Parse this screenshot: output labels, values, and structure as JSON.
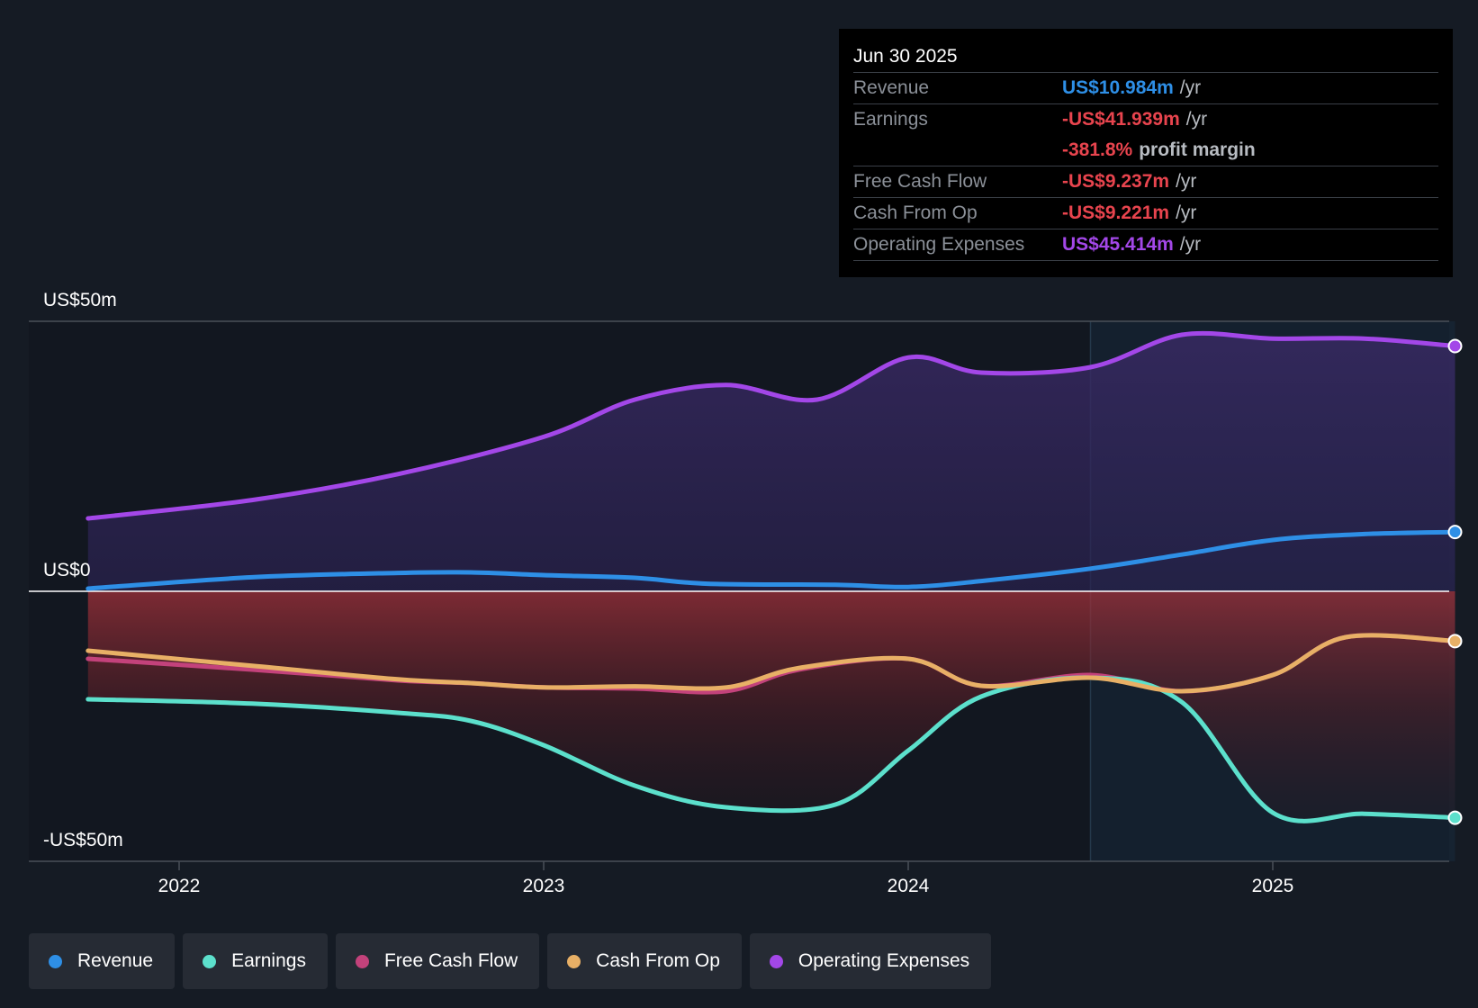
{
  "chart_data": {
    "type": "area",
    "y_axis": {
      "labels": [
        "US$50m",
        "US$0",
        "-US$50m"
      ],
      "ylim": [
        -50,
        50
      ],
      "unit": "US$m"
    },
    "x_axis": {
      "ticks": [
        "2022",
        "2023",
        "2024",
        "2025"
      ],
      "xlim": [
        2021.75,
        2025.5
      ]
    },
    "forecast_start": 2024.5,
    "series": [
      {
        "name": "Revenue",
        "color": "#2e8fe6",
        "points": [
          [
            2021.75,
            0.5
          ],
          [
            2022.2,
            2.6
          ],
          [
            2022.6,
            3.4
          ],
          [
            2022.8,
            3.5
          ],
          [
            2023.0,
            3.0
          ],
          [
            2023.25,
            2.5
          ],
          [
            2023.45,
            1.4
          ],
          [
            2023.8,
            1.2
          ],
          [
            2024.0,
            0.8
          ],
          [
            2024.2,
            1.9
          ],
          [
            2024.5,
            4.2
          ],
          [
            2024.75,
            6.8
          ],
          [
            2025.0,
            9.5
          ],
          [
            2025.25,
            10.6
          ],
          [
            2025.5,
            10.984
          ]
        ]
      },
      {
        "name": "Earnings",
        "color": "#5ce0cc",
        "points": [
          [
            2021.75,
            -20
          ],
          [
            2022.2,
            -20.8
          ],
          [
            2022.6,
            -22.5
          ],
          [
            2022.8,
            -24
          ],
          [
            2023.0,
            -28.5
          ],
          [
            2023.25,
            -36
          ],
          [
            2023.5,
            -40
          ],
          [
            2023.8,
            -39.5
          ],
          [
            2024.0,
            -29.5
          ],
          [
            2024.2,
            -19.5
          ],
          [
            2024.5,
            -16
          ],
          [
            2024.75,
            -20.5
          ],
          [
            2025.0,
            -41
          ],
          [
            2025.25,
            -41.2
          ],
          [
            2025.5,
            -41.939
          ]
        ]
      },
      {
        "name": "Free Cash Flow",
        "color": "#c3427b",
        "points": [
          [
            2021.75,
            -12.5
          ],
          [
            2022.2,
            -14.5
          ],
          [
            2022.6,
            -16.5
          ],
          [
            2022.8,
            -17
          ],
          [
            2023.0,
            -17.8
          ],
          [
            2023.25,
            -18
          ],
          [
            2023.5,
            -18.5
          ],
          [
            2023.7,
            -14.5
          ],
          [
            2024.0,
            -12.5
          ],
          [
            2024.2,
            -17.5
          ],
          [
            2024.5,
            -15.5
          ],
          [
            2024.75,
            -18.5
          ],
          [
            2025.0,
            -15.5
          ],
          [
            2025.2,
            -8.5
          ],
          [
            2025.5,
            -9.237
          ]
        ]
      },
      {
        "name": "Cash From Op",
        "color": "#e8b066",
        "points": [
          [
            2021.75,
            -11
          ],
          [
            2022.2,
            -13.8
          ],
          [
            2022.6,
            -16.3
          ],
          [
            2022.8,
            -17
          ],
          [
            2023.0,
            -17.8
          ],
          [
            2023.25,
            -17.6
          ],
          [
            2023.5,
            -17.8
          ],
          [
            2023.7,
            -14.2
          ],
          [
            2024.0,
            -12.5
          ],
          [
            2024.2,
            -17.5
          ],
          [
            2024.5,
            -16
          ],
          [
            2024.75,
            -18.5
          ],
          [
            2025.0,
            -15.5
          ],
          [
            2025.2,
            -8.5
          ],
          [
            2025.5,
            -9.221
          ]
        ]
      },
      {
        "name": "Operating Expenses",
        "color": "#a347e8",
        "points": [
          [
            2021.75,
            13.5
          ],
          [
            2022.2,
            16.9
          ],
          [
            2022.6,
            21.7
          ],
          [
            2023.0,
            28.6
          ],
          [
            2023.25,
            35.5
          ],
          [
            2023.5,
            38.2
          ],
          [
            2023.75,
            35.5
          ],
          [
            2024.0,
            43.3
          ],
          [
            2024.2,
            40.5
          ],
          [
            2024.5,
            41.5
          ],
          [
            2024.75,
            47.5
          ],
          [
            2025.0,
            46.8
          ],
          [
            2025.25,
            46.8
          ],
          [
            2025.5,
            45.414
          ]
        ]
      }
    ]
  },
  "tooltip": {
    "date": "Jun 30 2025",
    "rows": [
      {
        "label": "Revenue",
        "value": "US$10.984m",
        "unit": "/yr",
        "color": "#2e8fe6"
      },
      {
        "label": "Earnings",
        "value": "-US$41.939m",
        "unit": "/yr",
        "color": "#e8444e"
      },
      {
        "label": "",
        "value": "-381.8%",
        "unit": "profit margin",
        "color": "#e8444e"
      },
      {
        "label": "Free Cash Flow",
        "value": "-US$9.237m",
        "unit": "/yr",
        "color": "#e8444e"
      },
      {
        "label": "Cash From Op",
        "value": "-US$9.221m",
        "unit": "/yr",
        "color": "#e8444e"
      },
      {
        "label": "Operating Expenses",
        "value": "US$45.414m",
        "unit": "/yr",
        "color": "#a347e8"
      }
    ]
  },
  "legend": [
    {
      "label": "Revenue",
      "color": "#2e8fe6"
    },
    {
      "label": "Earnings",
      "color": "#5ce0cc"
    },
    {
      "label": "Free Cash Flow",
      "color": "#c3427b"
    },
    {
      "label": "Cash From Op",
      "color": "#e8b066"
    },
    {
      "label": "Operating Expenses",
      "color": "#a347e8"
    }
  ]
}
